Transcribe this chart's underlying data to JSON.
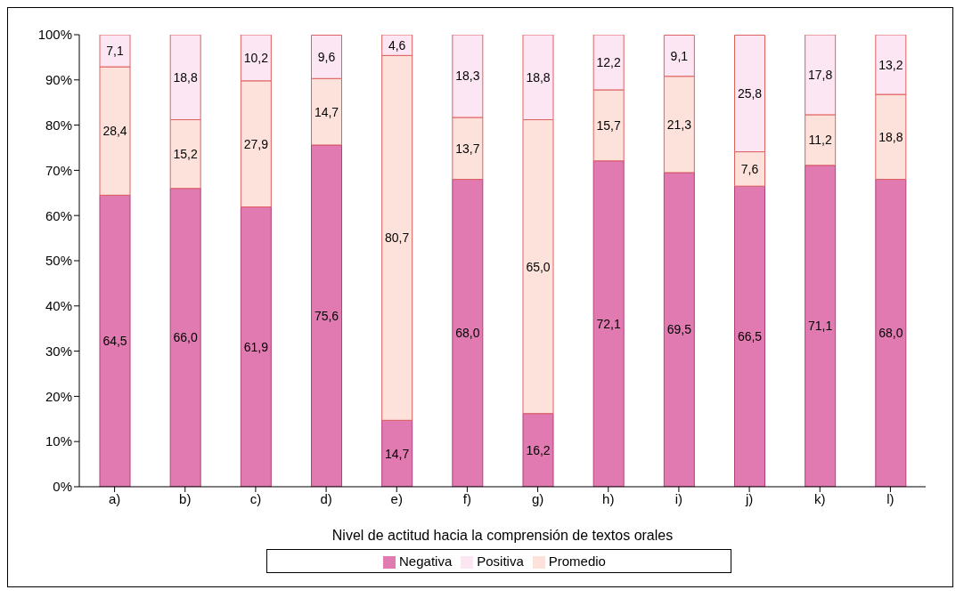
{
  "chart_data": {
    "type": "bar",
    "stacked": true,
    "xlabel": "Nivel de actitud hacia la comprensión de textos orales",
    "categories": [
      "a)",
      "b)",
      "c)",
      "d)",
      "e)",
      "f)",
      "g)",
      "h)",
      "i)",
      "j)",
      "k)",
      "l)"
    ],
    "series": [
      {
        "name": "Negativa",
        "color": "#e07ab0",
        "values": [
          64.5,
          66.0,
          61.9,
          75.6,
          14.7,
          68.0,
          16.2,
          72.1,
          69.5,
          66.5,
          71.1,
          68.0
        ],
        "value_labels": [
          "64,5",
          "66,0",
          "61,9",
          "75,6",
          "14,7",
          "68,0",
          "16,2",
          "72,1",
          "69,5",
          "66,5",
          "71,1",
          "68,0"
        ]
      },
      {
        "name": "Promedio",
        "color": "#fde2dc",
        "values": [
          28.4,
          15.2,
          27.9,
          14.7,
          80.7,
          13.7,
          65.0,
          15.7,
          21.3,
          7.6,
          11.2,
          18.8
        ],
        "value_labels": [
          "28,4",
          "15,2",
          "27,9",
          "14,7",
          "80,7",
          "13,7",
          "65,0",
          "15,7",
          "21,3",
          "7,6",
          "11,2",
          "18,8"
        ]
      },
      {
        "name": "Positiva",
        "color": "#fce6f3",
        "values": [
          7.1,
          18.8,
          10.2,
          9.6,
          4.6,
          18.3,
          18.8,
          12.2,
          9.1,
          25.8,
          17.8,
          13.2
        ],
        "value_labels": [
          "7,1",
          "18,8",
          "10,2",
          "9,6",
          "4,6",
          "18,3",
          "18,8",
          "12,2",
          "9,1",
          "25,8",
          "17,8",
          "13,2"
        ]
      }
    ],
    "ylim": [
      0,
      100
    ],
    "yticks": [
      {
        "value": 0,
        "label": "0%"
      },
      {
        "value": 10,
        "label": "10%"
      },
      {
        "value": 20,
        "label": "20%"
      },
      {
        "value": 30,
        "label": "30%"
      },
      {
        "value": 40,
        "label": "40%"
      },
      {
        "value": 50,
        "label": "50%"
      },
      {
        "value": 60,
        "label": "60%"
      },
      {
        "value": 70,
        "label": "70%"
      },
      {
        "value": 80,
        "label": "80%"
      },
      {
        "value": 90,
        "label": "90%"
      },
      {
        "value": 100,
        "label": "100%"
      }
    ],
    "legend": "bottom"
  }
}
